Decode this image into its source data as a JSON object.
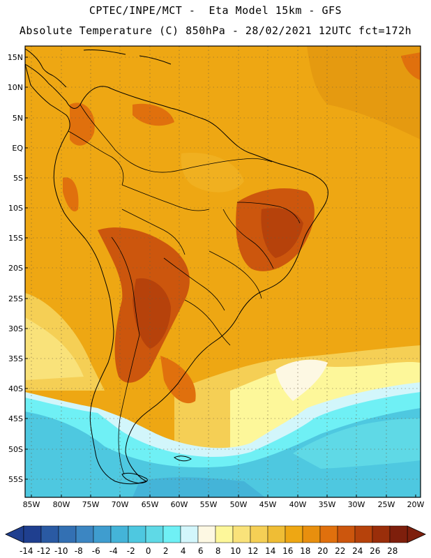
{
  "header": {
    "line1": "CPTEC/INPE/MCT -  Eta Model 15km - GFS",
    "line2": "Absolute Temperature (C) 850hPa - 28/02/2021 12UTC fct=172h"
  },
  "axes": {
    "lat_labels": [
      "15N",
      "10N",
      "5N",
      "EQ",
      "5S",
      "10S",
      "15S",
      "20S",
      "25S",
      "30S",
      "35S",
      "40S",
      "45S",
      "50S",
      "55S"
    ],
    "lon_labels": [
      "85W",
      "80W",
      "75W",
      "70W",
      "65W",
      "60W",
      "55W",
      "50W",
      "45W",
      "40W",
      "35W",
      "30W",
      "25W",
      "20W"
    ]
  },
  "colorbar": {
    "labels": [
      "-14",
      "-12",
      "-10",
      "-8",
      "-6",
      "-4",
      "-2",
      "0",
      "2",
      "4",
      "6",
      "8",
      "10",
      "12",
      "14",
      "16",
      "18",
      "20",
      "22",
      "24",
      "26",
      "28"
    ],
    "colors": [
      "#1f3f8f",
      "#2a5aa3",
      "#3370b3",
      "#3c86c2",
      "#3f9dcf",
      "#44b4d8",
      "#4ec8e0",
      "#5fd9e6",
      "#6ff0f5",
      "#d2f6fb",
      "#fdf8e3",
      "#fdf79a",
      "#f9e27a",
      "#f5cf55",
      "#efbd35",
      "#eea713",
      "#e88f0e",
      "#e0700d",
      "#cc560d",
      "#b6420b",
      "#9a2e0a",
      "#7e1f0c"
    ],
    "colors_note": "swatches from -14 to 28 C"
  }
}
